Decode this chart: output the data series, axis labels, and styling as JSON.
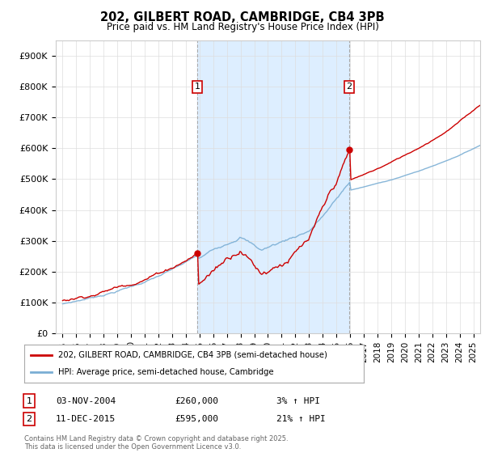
{
  "title": "202, GILBERT ROAD, CAMBRIDGE, CB4 3PB",
  "subtitle": "Price paid vs. HM Land Registry's House Price Index (HPI)",
  "ylabel_ticks": [
    "£0",
    "£100K",
    "£200K",
    "£300K",
    "£400K",
    "£500K",
    "£600K",
    "£700K",
    "£800K",
    "£900K"
  ],
  "ytick_values": [
    0,
    100000,
    200000,
    300000,
    400000,
    500000,
    600000,
    700000,
    800000,
    900000
  ],
  "ylim": [
    0,
    950000
  ],
  "xlim_start": 1994.5,
  "xlim_end": 2025.5,
  "sale1_year": 2004,
  "sale1_month": 11,
  "sale1_date": 2004.84,
  "sale1_price": 260000,
  "sale2_year": 2015,
  "sale2_month": 12,
  "sale2_date": 2015.94,
  "sale2_price": 595000,
  "red_color": "#cc0000",
  "blue_color": "#7aaed4",
  "dashed_color": "#aaaaaa",
  "span_color": "#ddeeff",
  "legend_label1": "202, GILBERT ROAD, CAMBRIDGE, CB4 3PB (semi-detached house)",
  "legend_label2": "HPI: Average price, semi-detached house, Cambridge",
  "annotation1_date": "03-NOV-2004",
  "annotation1_price": "£260,000",
  "annotation1_pct": "3% ↑ HPI",
  "annotation2_date": "11-DEC-2015",
  "annotation2_price": "£595,000",
  "annotation2_pct": "21% ↑ HPI",
  "footer": "Contains HM Land Registry data © Crown copyright and database right 2025.\nThis data is licensed under the Open Government Licence v3.0.",
  "background_color": "#ffffff"
}
